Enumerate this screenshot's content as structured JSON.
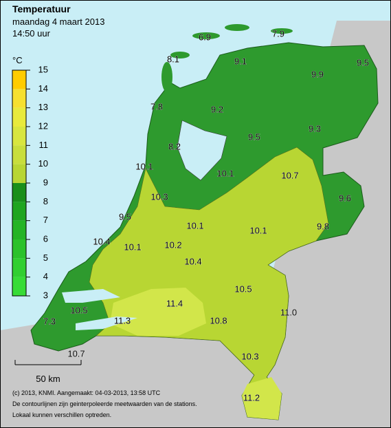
{
  "header": {
    "title": "Temperatuur",
    "date": "maandag 4 maart 2013",
    "time": "14:50 uur"
  },
  "legend": {
    "unit": "°C",
    "ticks": [
      3,
      4,
      5,
      6,
      7,
      8,
      9,
      10,
      11,
      12,
      13,
      14,
      15
    ],
    "colors": [
      "#3ee83e",
      "#37dc37",
      "#31cf31",
      "#2bc22b",
      "#25b425",
      "#1fa51f",
      "#1a8f1a",
      "#b8d633",
      "#c8de3c",
      "#d8e63f",
      "#e8ea3c",
      "#f6e030",
      "#ffcc00"
    ]
  },
  "stations": [
    "6.9",
    "7.9",
    "8.1",
    "9.1",
    "9.5",
    "9.9",
    "7.8",
    "9.2",
    "9.5",
    "9.3",
    "8.2",
    "10.1",
    "10.1",
    "10.7",
    "10.3",
    "9.6",
    "9.5",
    "10.1",
    "10.1",
    "9.8",
    "10.4",
    "10.1",
    "10.2",
    "10.4",
    "10.5",
    "10.5",
    "11.0",
    "11.4",
    "11.3",
    "7.3",
    "10.8",
    "10.7",
    "10.3",
    "11.2"
  ],
  "scale": {
    "label": "50 km"
  },
  "footer": {
    "lines": [
      "(c) 2013, KNMI. Aangemaakt: 04-03-2013, 13:58 UTC",
      "De contourlijnen zijn geinterpoleerde meetwaarden van de stations.",
      "Lokaal kunnen verschillen optreden."
    ]
  }
}
